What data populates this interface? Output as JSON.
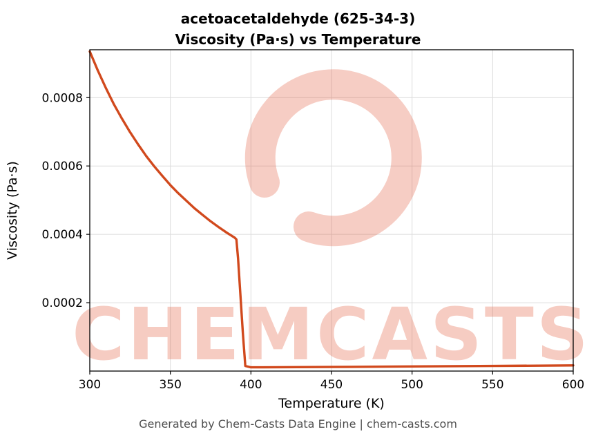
{
  "header": {
    "title_line1": "acetoacetaldehyde (625-34-3)",
    "title_line2": "Viscosity (Pa·s) vs Temperature"
  },
  "footer": {
    "text": "Generated by Chem-Casts Data Engine | chem-casts.com"
  },
  "watermark": {
    "text": "CHEMCASTS",
    "logo": "chemcasts-ring-logo",
    "color": "#e2593a",
    "opacity": 0.3
  },
  "chart_data": {
    "type": "line",
    "title": "acetoacetaldehyde (625-34-3)\nViscosity (Pa·s) vs Temperature",
    "xlabel": "Temperature (K)",
    "ylabel": "Viscosity (Pa·s)",
    "xlim": [
      300,
      600
    ],
    "ylim": [
      0,
      0.00094
    ],
    "x_ticks": [
      300,
      350,
      400,
      450,
      500,
      550,
      600
    ],
    "y_ticks": [
      0.0002,
      0.0004,
      0.0006,
      0.0008
    ],
    "grid": true,
    "legend": "none",
    "line_color": "#d1491d",
    "series": [
      {
        "name": "viscosity",
        "x": [
          300,
          305,
          310,
          315,
          320,
          325,
          330,
          335,
          340,
          345,
          350,
          355,
          360,
          365,
          370,
          375,
          380,
          385,
          390,
          391,
          392,
          393.5,
          395,
          396.5,
          400,
          450,
          500,
          550,
          600
        ],
        "y": [
          0.000935,
          0.000879,
          0.000828,
          0.00078,
          0.000738,
          0.000699,
          0.000663,
          0.000629,
          0.000599,
          0.000571,
          0.000544,
          0.00052,
          0.000498,
          0.000476,
          0.000457,
          0.000438,
          0.000421,
          0.000405,
          0.00039,
          0.000385,
          0.00033,
          0.00022,
          0.00011,
          1.5e-05,
          1.1e-05,
          1.2e-05,
          1.35e-05,
          1.5e-05,
          1.65e-05
        ]
      }
    ]
  }
}
